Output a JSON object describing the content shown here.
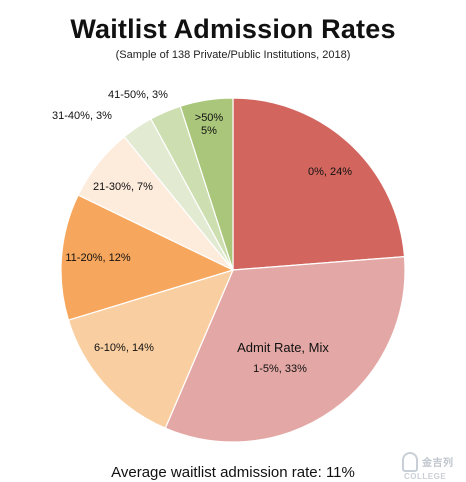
{
  "header": {
    "title": "Waitlist Admission Rates",
    "subtitle": "(Sample of 138 Private/Public Institutions, 2018)"
  },
  "footer": {
    "text": "Average waitlist admission rate: 11%"
  },
  "watermark": {
    "text": "金吉列",
    "sub": "COLLEGE"
  },
  "chart_data": {
    "type": "pie",
    "title": "Waitlist Admission Rates",
    "subtitle": "(Sample of 138 Private/Public Institutions, 2018)",
    "legend_title": "Admit Rate, Mix",
    "slices": [
      {
        "label": "0%, 24%",
        "category": "0%",
        "value": 24,
        "color": "#d2665f"
      },
      {
        "label": "1-5%, 33%",
        "category": "1-5%",
        "value": 33,
        "color": "#e3a8a5"
      },
      {
        "label": "6-10%, 14%",
        "category": "6-10%",
        "value": 14,
        "color": "#f9cfa2"
      },
      {
        "label": "11-20%, 12%",
        "category": "11-20%",
        "value": 12,
        "color": "#f7a75d"
      },
      {
        "label": "21-30%, 7%",
        "category": "21-30%",
        "value": 7,
        "color": "#fdebdc"
      },
      {
        "label": "31-40%, 3%",
        "category": "31-40%",
        "value": 3,
        "color": "#e2ebd2"
      },
      {
        "label": "41-50%, 3%",
        "category": "41-50%",
        "value": 3,
        "color": "#cddfb0"
      },
      {
        "label": ">50%, 5%",
        "category": ">50%",
        "value": 5,
        "color": "#a9c67a"
      }
    ]
  }
}
